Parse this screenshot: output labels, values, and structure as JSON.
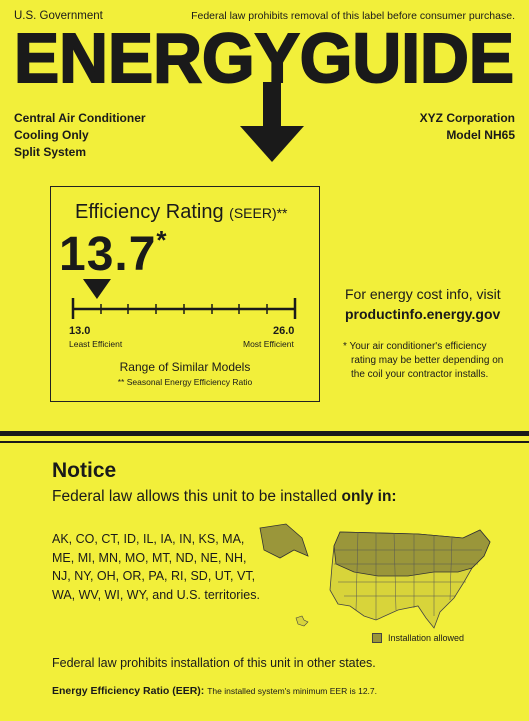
{
  "header": {
    "left": "U.S. Government",
    "right": "Federal law prohibits removal of this label before consumer purchase."
  },
  "logo_text": "ENERGYGUIDE",
  "product": {
    "lines": [
      "Central Air Conditioner",
      "Cooling Only",
      "Split System"
    ],
    "manufacturer": "XYZ Corporation",
    "model": "Model NH65"
  },
  "rating": {
    "title": "Efficiency Rating",
    "title_suffix": "(SEER)**",
    "value": "13.7",
    "value_mark": "*",
    "scale_min": "13.0",
    "scale_max": "26.0",
    "min_label": "Least Efficient",
    "max_label": "Most Efficient",
    "range_label": "Range of Similar Models",
    "footnote": "** Seasonal Energy Efficiency Ratio",
    "value_numeric": 13.7,
    "min_numeric": 13.0,
    "max_numeric": 26.0
  },
  "cost_info": {
    "line1": "For energy cost info, visit",
    "url": "productinfo.energy.gov"
  },
  "efficiency_note": {
    "line1": "* Your air conditioner's efficiency",
    "line2": "rating may be better depending on",
    "line3": "the coil your contractor installs."
  },
  "notice": {
    "title": "Notice",
    "sub_prefix": "Federal law allows this unit to be installed ",
    "sub_bold": "only in:",
    "states": [
      "AK, CO, CT, ID, IL, IA, IN, KS, MA,",
      "ME, MI, MN, MO, MT, ND, NE, NH,",
      "NJ, NY, OH, OR, PA, RI, SD, UT, VT,",
      "WA, WV, WI, WY, and U.S. territories."
    ],
    "legend": "Installation allowed",
    "prohibition": "Federal law prohibits installation of this unit in other states.",
    "eer_label": "Energy Efficiency Ratio (EER):",
    "eer_text": "The installed system's minimum EER is 12.7."
  },
  "colors": {
    "background": "#f2ef3a",
    "ink": "#1a1a1a",
    "map_allowed": "#9a963a"
  }
}
